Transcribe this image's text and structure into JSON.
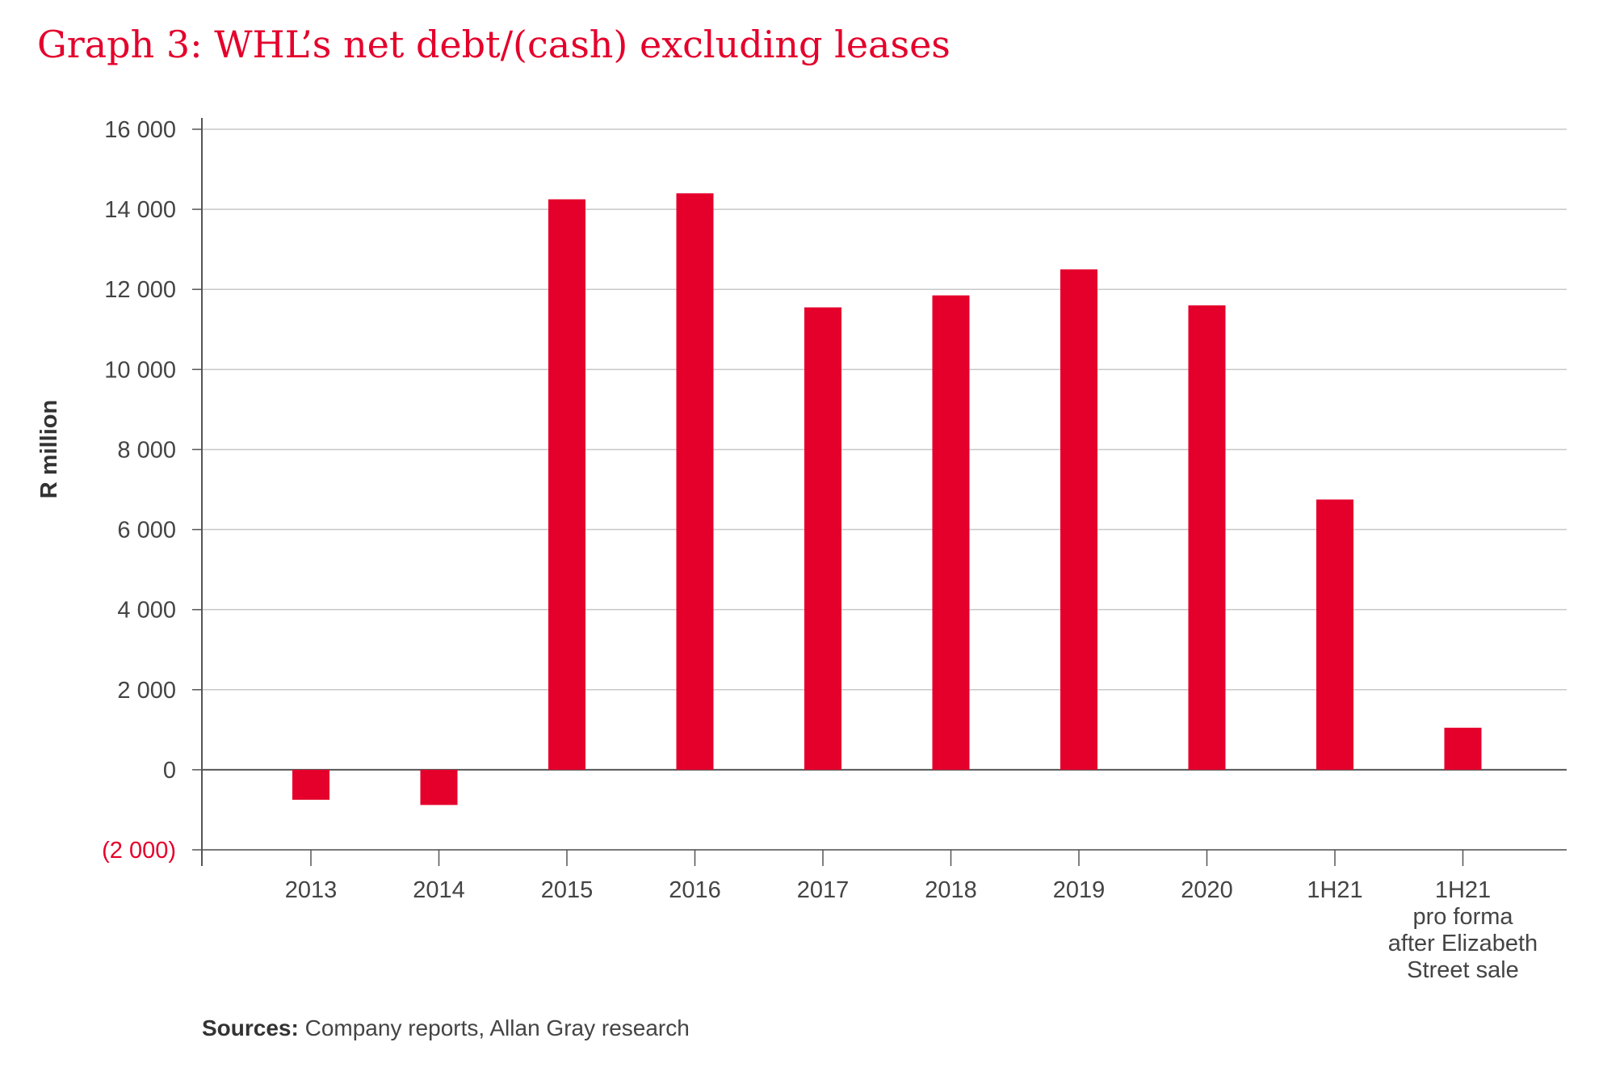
{
  "title": "Graph 3: WHL’s net debt/(cash) excluding leases",
  "sources": {
    "label": "Sources:",
    "text": " Company reports, Allan Gray research"
  },
  "colors": {
    "bar": "#e4002b",
    "title": "#e4002b",
    "grid": "#c8c8c8",
    "axis": "#555555"
  },
  "chart_data": {
    "type": "bar",
    "ylabel": "R million",
    "xlabel": "",
    "ylim": [
      -2000,
      16000
    ],
    "yticks": [
      -2000,
      0,
      2000,
      4000,
      6000,
      8000,
      10000,
      12000,
      14000,
      16000
    ],
    "ytick_labels": [
      "(2 000)",
      "0",
      "2 000",
      "4 000",
      "6 000",
      "8 000",
      "10 000",
      "12 000",
      "14 000",
      "16 000"
    ],
    "grid": true,
    "categories": [
      [
        "2013"
      ],
      [
        "2014"
      ],
      [
        "2015"
      ],
      [
        "2016"
      ],
      [
        "2017"
      ],
      [
        "2018"
      ],
      [
        "2019"
      ],
      [
        "2020"
      ],
      [
        "1H21"
      ],
      [
        "1H21",
        "pro forma",
        "after Elizabeth",
        "Street sale"
      ]
    ],
    "values": [
      -750,
      -880,
      14250,
      14400,
      11550,
      11850,
      12500,
      11600,
      6750,
      1050
    ]
  }
}
